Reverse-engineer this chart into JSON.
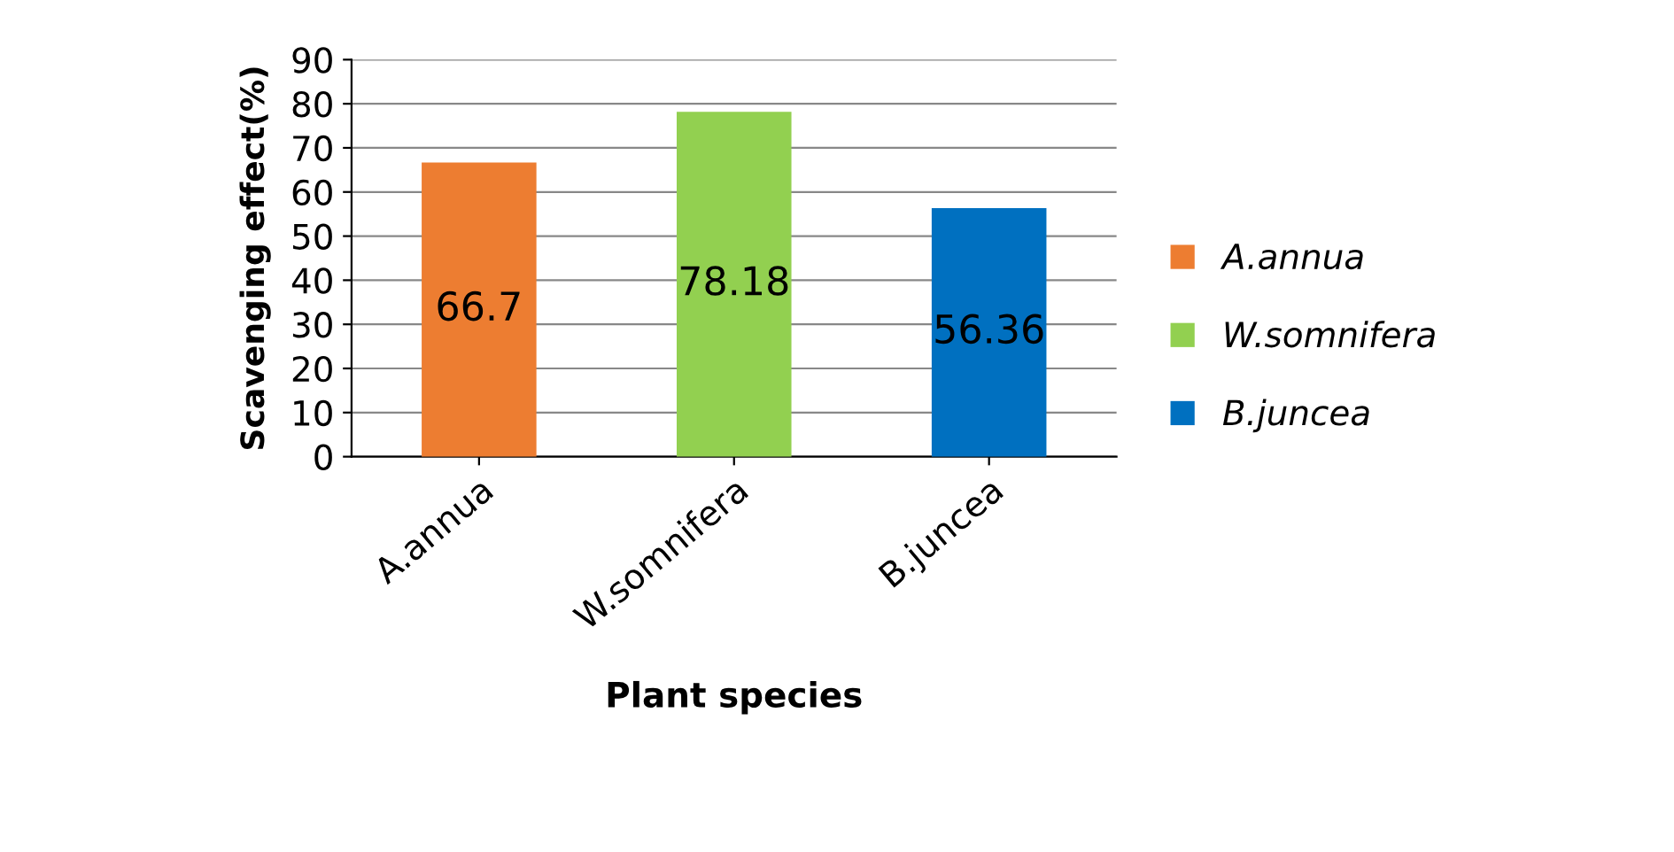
{
  "chart_data": {
    "type": "bar",
    "xlabel": "Plant species",
    "ylabel": "Scavenging effect(%)",
    "categories": [
      "A.annua",
      "W.somnifera",
      "B.juncea"
    ],
    "series": [
      {
        "name": "A.annua",
        "color": "#ed7d31",
        "values": [
          66.7,
          null,
          null
        ]
      },
      {
        "name": "W.somnifera",
        "color": "#92d050",
        "values": [
          null,
          78.18,
          null
        ]
      },
      {
        "name": "B.juncea",
        "color": "#0070c0",
        "values": [
          null,
          null,
          56.36
        ]
      }
    ],
    "ylim": [
      0,
      90
    ],
    "yticks": [
      0,
      10,
      20,
      30,
      40,
      50,
      60,
      70,
      80,
      90
    ],
    "grid": "y",
    "legend": "right",
    "data_labels": true
  }
}
